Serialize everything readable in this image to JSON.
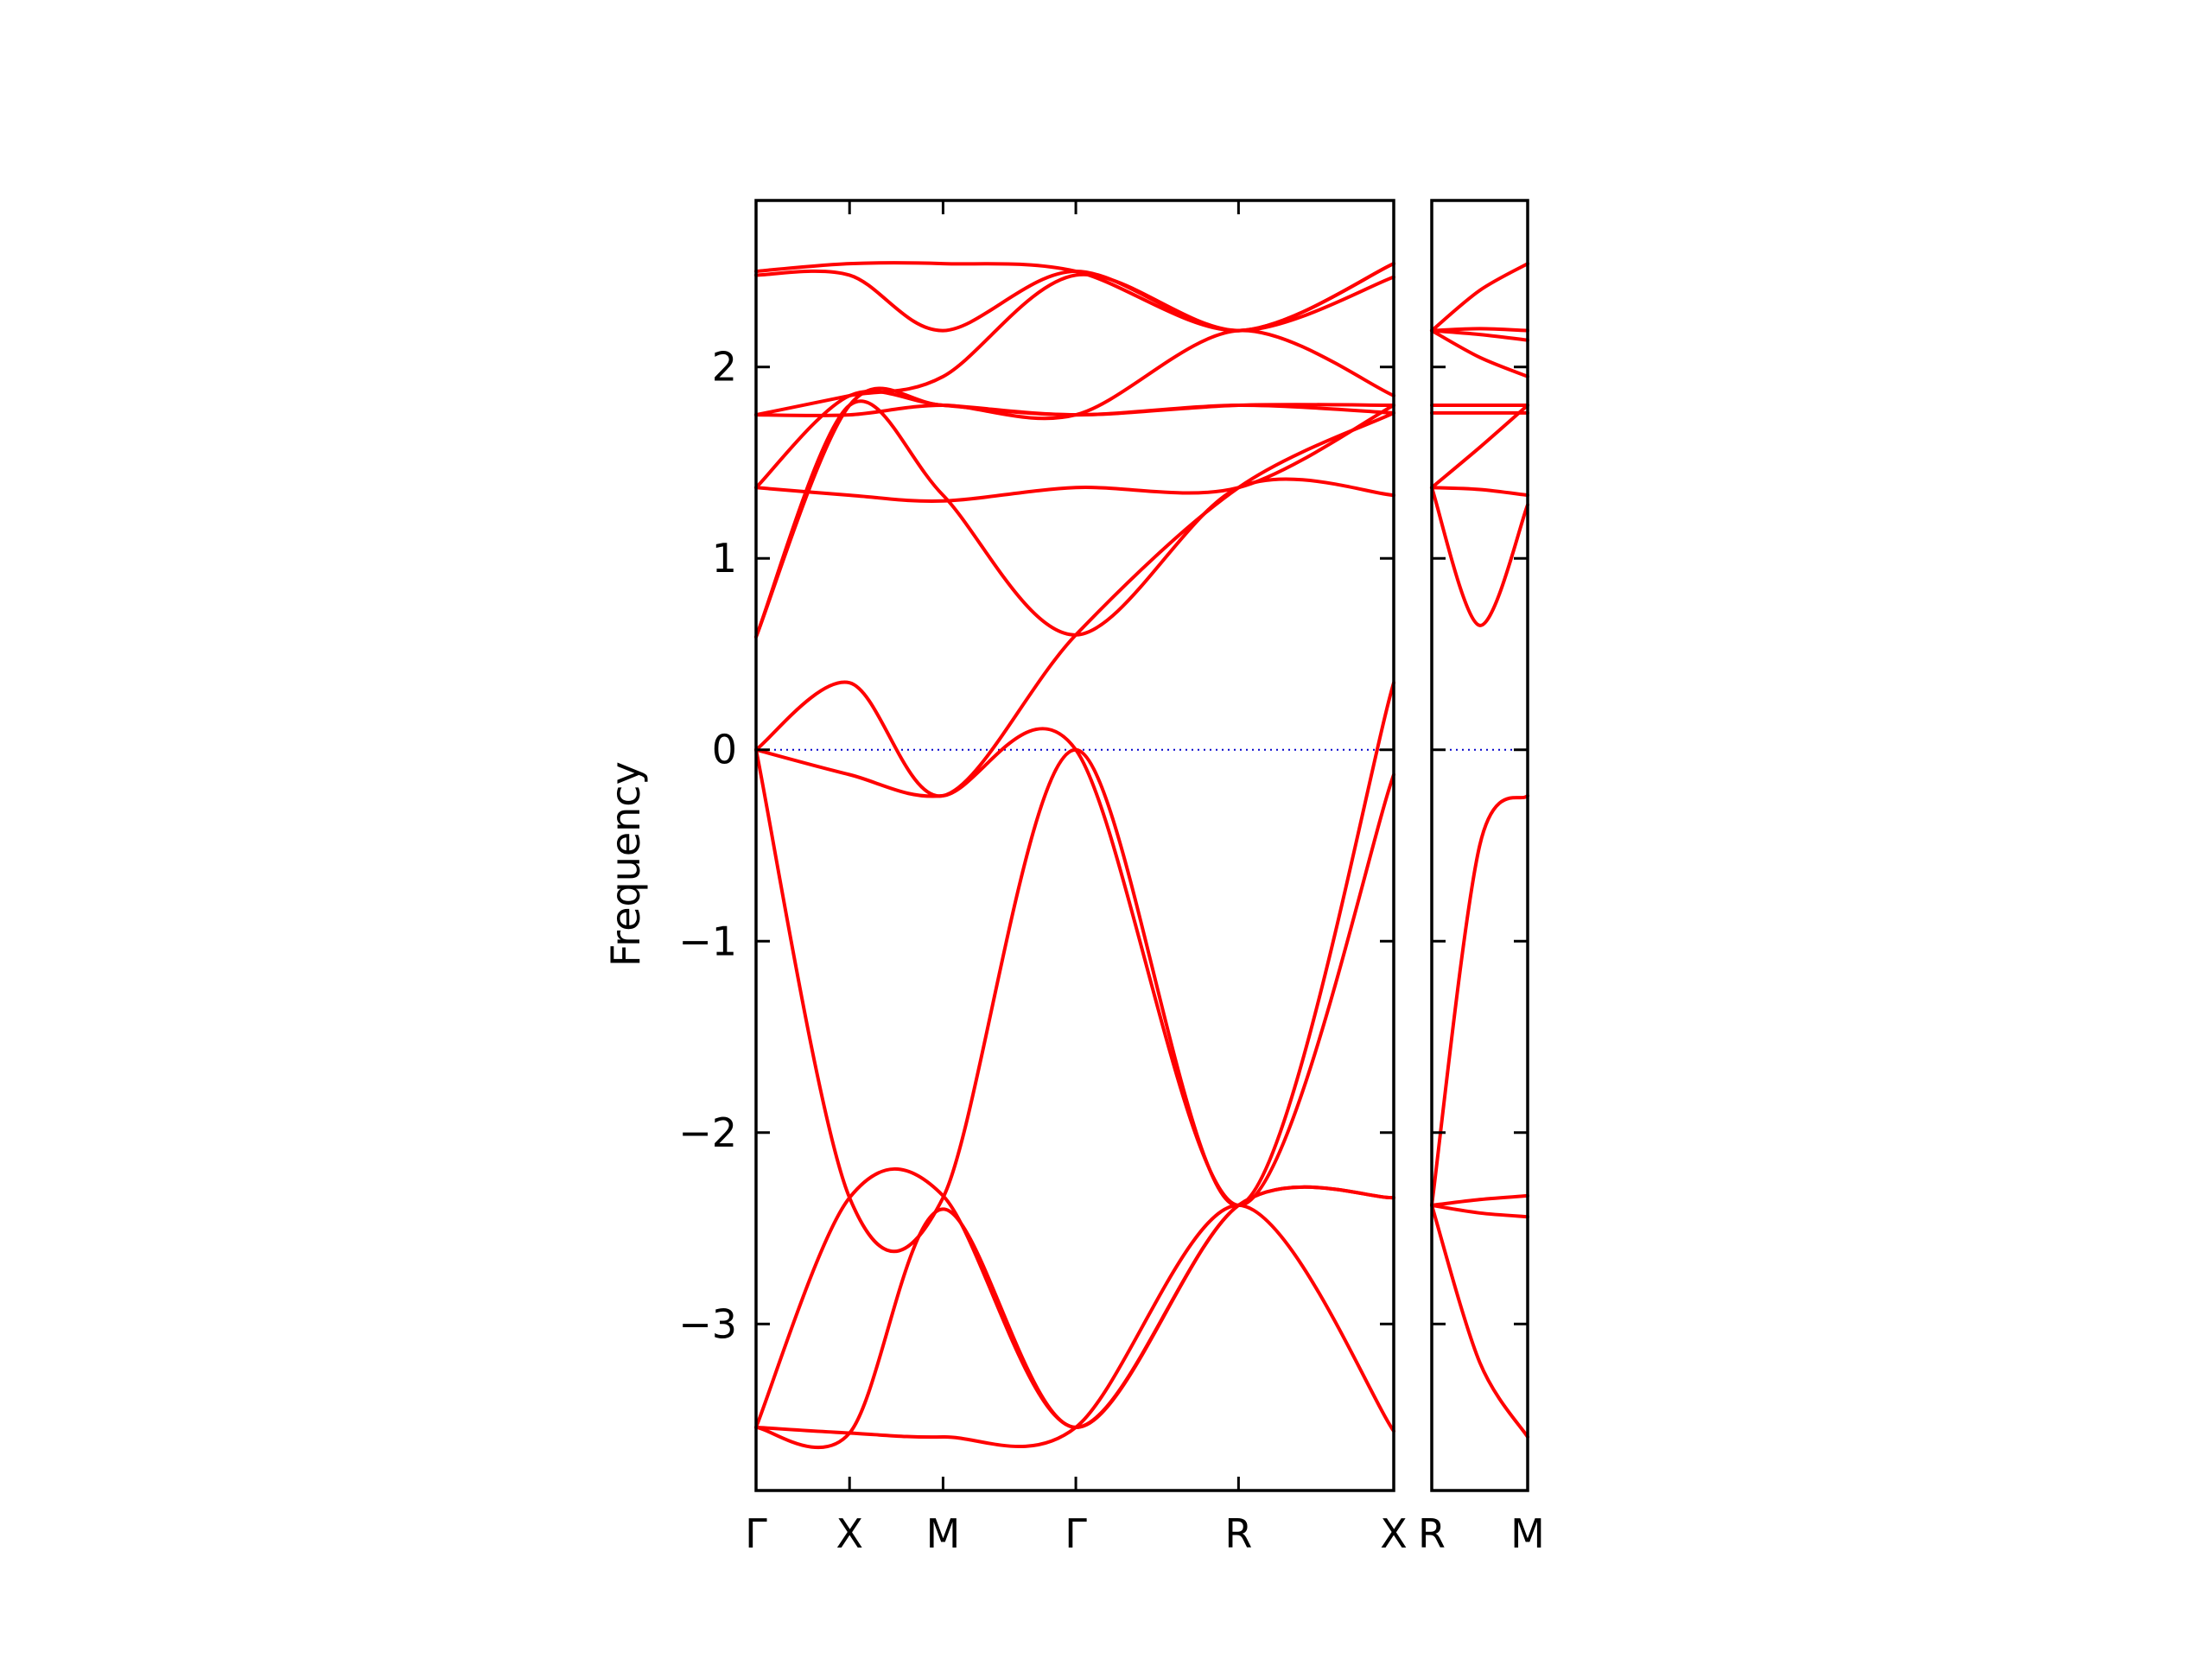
{
  "chart_data": {
    "type": "line",
    "title": "",
    "ylabel": "Frequency",
    "ylim": [
      -3.87,
      2.87
    ],
    "yticks": [
      -3,
      -2,
      -1,
      0,
      1,
      2
    ],
    "ytick_labels": [
      "−3",
      "−2",
      "−1",
      "0",
      "1",
      "2"
    ],
    "colors": {
      "bands": "#ff0000",
      "zero_line": "#0000cc",
      "axes": "#000000"
    },
    "panels": [
      {
        "name": "main",
        "xlim": [
          0,
          3.41
        ],
        "kpoints": [
          {
            "label": "Γ",
            "x": 0
          },
          {
            "label": "X",
            "x": 0.5
          },
          {
            "label": "M",
            "x": 1.0
          },
          {
            "label": "Γ",
            "x": 1.71
          },
          {
            "label": "R",
            "x": 2.58
          },
          {
            "label": "X",
            "x": 3.41
          }
        ],
        "bands": [
          {
            "x": [
              0,
              0.5,
              1.0,
              1.71,
              2.58,
              3.41
            ],
            "y": [
              -3.54,
              -3.57,
              -3.59,
              -3.54,
              -2.38,
              -3.56
            ]
          },
          {
            "x": [
              0,
              0.5,
              1.0,
              1.71,
              2.58,
              3.41
            ],
            "y": [
              -3.54,
              -2.34,
              -2.33,
              -3.54,
              -2.38,
              -2.34
            ]
          },
          {
            "x": [
              0,
              0.5,
              1.0,
              1.71,
              2.58,
              3.41
            ],
            "y": [
              -3.54,
              -3.57,
              -2.4,
              -3.54,
              -2.38,
              -2.34
            ]
          },
          {
            "x": [
              0,
              0.5,
              1.0,
              1.71,
              2.58,
              3.41
            ],
            "y": [
              0.0,
              -2.34,
              -2.34,
              0.0,
              -2.38,
              0.35
            ]
          },
          {
            "x": [
              0,
              0.5,
              1.0,
              1.71,
              2.58,
              3.41
            ],
            "y": [
              0.0,
              -0.13,
              -0.24,
              0.0,
              -2.38,
              -0.13
            ]
          },
          {
            "x": [
              0,
              0.5,
              1.0,
              1.71,
              2.58,
              3.41
            ],
            "y": [
              0.0,
              0.35,
              -0.24,
              0.6,
              1.37,
              1.76
            ]
          },
          {
            "x": [
              0,
              0.5,
              1.0,
              1.71,
              2.58,
              3.41
            ],
            "y": [
              0.59,
              1.8,
              1.33,
              0.6,
              1.37,
              1.33
            ]
          },
          {
            "x": [
              0,
              0.5,
              1.0,
              1.71,
              2.58,
              3.41
            ],
            "y": [
              0.59,
              1.8,
              1.8,
              1.75,
              1.8,
              1.76
            ]
          },
          {
            "x": [
              0,
              0.5,
              1.0,
              1.71,
              2.58,
              3.41
            ],
            "y": [
              1.37,
              1.33,
              1.3,
              1.37,
              1.37,
              1.8
            ]
          },
          {
            "x": [
              0,
              0.5,
              1.0,
              1.71,
              2.58,
              3.41
            ],
            "y": [
              1.37,
              1.85,
              1.8,
              1.75,
              1.8,
              1.8
            ]
          },
          {
            "x": [
              0,
              0.5,
              1.0,
              1.71,
              2.58,
              3.41
            ],
            "y": [
              1.75,
              1.75,
              1.8,
              1.75,
              2.19,
              1.85
            ]
          },
          {
            "x": [
              0,
              0.5,
              1.0,
              1.71,
              2.58,
              3.41
            ],
            "y": [
              1.75,
              1.85,
              1.95,
              2.48,
              2.19,
              2.47
            ]
          },
          {
            "x": [
              0,
              0.5,
              1.0,
              1.71,
              2.58,
              3.41
            ],
            "y": [
              2.48,
              2.48,
              2.19,
              2.5,
              2.19,
              2.54
            ]
          },
          {
            "x": [
              0,
              0.5,
              1.0,
              1.71,
              2.58,
              3.41
            ],
            "y": [
              2.5,
              2.54,
              2.54,
              2.5,
              2.19,
              2.54
            ]
          }
        ]
      },
      {
        "name": "right",
        "xlim": [
          0,
          0.5
        ],
        "kpoints": [
          {
            "label": "R",
            "x": 0
          },
          {
            "label": "M",
            "x": 0.5
          }
        ],
        "bands": [
          {
            "x": [
              0,
              0.25,
              0.5
            ],
            "y": [
              -2.38,
              -3.2,
              -3.59
            ]
          },
          {
            "x": [
              0,
              0.25,
              0.5
            ],
            "y": [
              -2.38,
              -2.42,
              -2.44
            ]
          },
          {
            "x": [
              0,
              0.25,
              0.5
            ],
            "y": [
              -2.38,
              -2.35,
              -2.33
            ]
          },
          {
            "x": [
              0,
              0.25,
              0.5
            ],
            "y": [
              -2.38,
              -0.5,
              -0.24
            ]
          },
          {
            "x": [
              0,
              0.25,
              0.5
            ],
            "y": [
              1.37,
              0.65,
              1.28
            ]
          },
          {
            "x": [
              0,
              0.25,
              0.5
            ],
            "y": [
              1.37,
              1.36,
              1.33
            ]
          },
          {
            "x": [
              0,
              0.25,
              0.5
            ],
            "y": [
              1.37,
              1.58,
              1.8
            ]
          },
          {
            "x": [
              0,
              0.25,
              0.5
            ],
            "y": [
              1.8,
              1.8,
              1.8
            ]
          },
          {
            "x": [
              0,
              0.25,
              0.5
            ],
            "y": [
              1.76,
              1.76,
              1.76
            ]
          },
          {
            "x": [
              0,
              0.25,
              0.5
            ],
            "y": [
              2.19,
              2.05,
              1.95
            ]
          },
          {
            "x": [
              0,
              0.25,
              0.5
            ],
            "y": [
              2.19,
              2.2,
              2.19
            ]
          },
          {
            "x": [
              0,
              0.25,
              0.5
            ],
            "y": [
              2.19,
              2.17,
              2.14
            ]
          },
          {
            "x": [
              0,
              0.25,
              0.5
            ],
            "y": [
              2.19,
              2.4,
              2.54
            ]
          }
        ]
      }
    ]
  }
}
